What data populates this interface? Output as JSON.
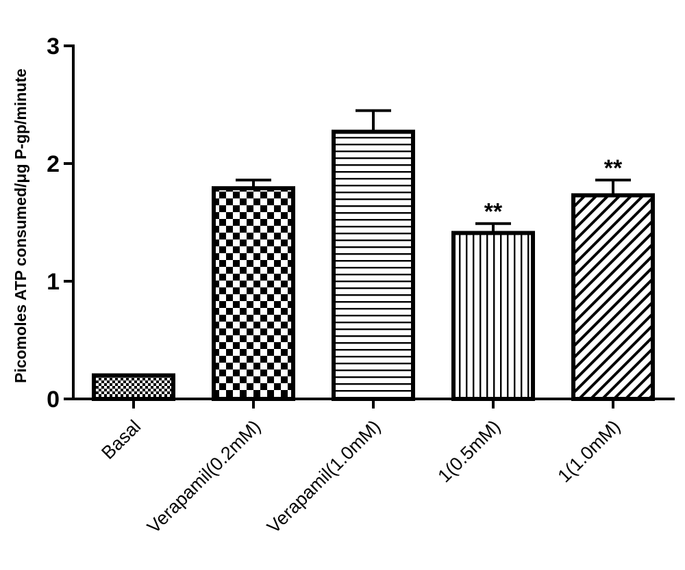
{
  "chart_data": {
    "type": "bar",
    "title": "",
    "xlabel": "",
    "ylabel": "Picomoles ATP consumed/μg P-gp/minute",
    "ylim": [
      0,
      3
    ],
    "yticks": [
      "0",
      "1",
      "2",
      "3"
    ],
    "categories": [
      "Basal",
      "Verapamil(0.2mM)",
      "Verapamil(1.0mM)",
      "1(0.5mM)",
      "1(1.0mM)"
    ],
    "values": [
      0.2,
      1.79,
      2.27,
      1.41,
      1.73
    ],
    "errors": [
      0.0,
      0.07,
      0.18,
      0.08,
      0.13
    ],
    "patterns": [
      "fine-checker",
      "checker",
      "horizontal-lines",
      "vertical-lines",
      "diagonal-hatch"
    ],
    "annotations": [
      "",
      "",
      "",
      "**",
      "**"
    ],
    "grid": false,
    "legend": "none",
    "colors": {
      "bar_fill": "#ffffff",
      "stroke": "#000000"
    }
  }
}
